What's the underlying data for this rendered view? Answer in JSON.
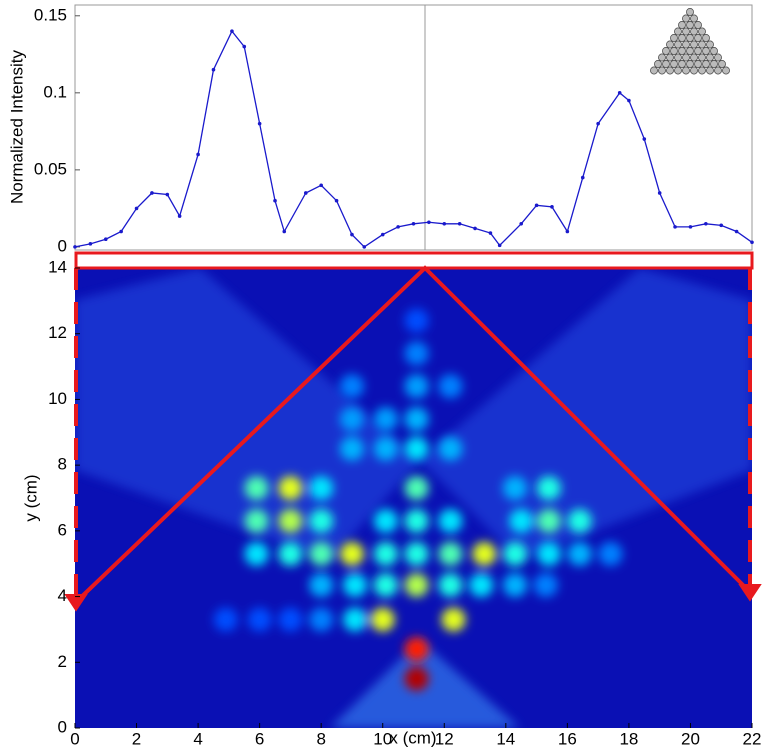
{
  "chart_data": [
    {
      "type": "line",
      "ylabel": "Normalized Intensity",
      "x": [
        0,
        0.5,
        1,
        1.5,
        2,
        2.5,
        3,
        3.4,
        4,
        4.5,
        5.1,
        5.5,
        6,
        6.5,
        6.8,
        7.5,
        8,
        8.5,
        9,
        9.4,
        10,
        10.5,
        11,
        11.5,
        12,
        12.5,
        13,
        13.5,
        13.8,
        14.5,
        15,
        15.5,
        16,
        16.5,
        17,
        17.7,
        18,
        18.5,
        19,
        19.5,
        20,
        20.5,
        21,
        21.5,
        22
      ],
      "series": [
        {
          "color": "#1a1acc",
          "values": [
            0,
            0.002,
            0.005,
            0.01,
            0.025,
            0.035,
            0.034,
            0.02,
            0.06,
            0.115,
            0.14,
            0.13,
            0.08,
            0.03,
            0.01,
            0.035,
            0.04,
            0.03,
            0.008,
            0,
            0.008,
            0.013,
            0.015,
            0.016,
            0.015,
            0.015,
            0.012,
            0.009,
            0.001,
            0.015,
            0.027,
            0.026,
            0.01,
            0.045,
            0.08,
            0.1,
            0.095,
            0.07,
            0.035,
            0.013,
            0.013,
            0.015,
            0.014,
            0.01,
            0.003
          ]
        }
      ],
      "xlim": [
        0,
        22
      ],
      "ylim": [
        -0.002,
        0.157
      ],
      "yticks": [
        0,
        0.05,
        0.1,
        0.15
      ]
    },
    {
      "type": "heatmap",
      "xlabel": "x (cm)",
      "ylabel": "y (cm)",
      "xlim": [
        0,
        22
      ],
      "ylim": [
        0,
        14
      ],
      "xticks": [
        0,
        2,
        4,
        6,
        8,
        10,
        12,
        14,
        16,
        18,
        20,
        22
      ],
      "yticks": [
        0,
        2,
        4,
        6,
        8,
        10,
        12,
        14
      ],
      "spots": [
        {
          "x": 11.1,
          "y": 1.5,
          "v": 0.95
        },
        {
          "x": 11.1,
          "y": 2.4,
          "v": 0.85
        },
        {
          "x": 10,
          "y": 3.3,
          "v": 0.6
        },
        {
          "x": 12.3,
          "y": 3.3,
          "v": 0.6
        },
        {
          "x": 9.1,
          "y": 3.3,
          "v": 0.35
        },
        {
          "x": 8,
          "y": 3.3,
          "v": 0.25
        },
        {
          "x": 7,
          "y": 3.3,
          "v": 0.2
        },
        {
          "x": 6,
          "y": 3.3,
          "v": 0.2
        },
        {
          "x": 4.9,
          "y": 3.3,
          "v": 0.2
        },
        {
          "x": 8,
          "y": 4.35,
          "v": 0.3
        },
        {
          "x": 9.1,
          "y": 4.35,
          "v": 0.35
        },
        {
          "x": 10.1,
          "y": 4.35,
          "v": 0.4
        },
        {
          "x": 11.1,
          "y": 4.35,
          "v": 0.55
        },
        {
          "x": 12.2,
          "y": 4.35,
          "v": 0.4
        },
        {
          "x": 13.2,
          "y": 4.35,
          "v": 0.35
        },
        {
          "x": 14.3,
          "y": 4.35,
          "v": 0.3
        },
        {
          "x": 15.3,
          "y": 4.35,
          "v": 0.25
        },
        {
          "x": 5.9,
          "y": 5.3,
          "v": 0.35
        },
        {
          "x": 7,
          "y": 5.3,
          "v": 0.4
        },
        {
          "x": 8,
          "y": 5.3,
          "v": 0.45
        },
        {
          "x": 9,
          "y": 5.3,
          "v": 0.6
        },
        {
          "x": 10.1,
          "y": 5.3,
          "v": 0.4
        },
        {
          "x": 11.1,
          "y": 5.3,
          "v": 0.4
        },
        {
          "x": 12.2,
          "y": 5.3,
          "v": 0.45
        },
        {
          "x": 13.3,
          "y": 5.3,
          "v": 0.6
        },
        {
          "x": 14.3,
          "y": 5.3,
          "v": 0.4
        },
        {
          "x": 15.4,
          "y": 5.3,
          "v": 0.35
        },
        {
          "x": 16.4,
          "y": 5.3,
          "v": 0.3
        },
        {
          "x": 17.4,
          "y": 5.3,
          "v": 0.25
        },
        {
          "x": 5.9,
          "y": 6.3,
          "v": 0.45
        },
        {
          "x": 7,
          "y": 6.3,
          "v": 0.55
        },
        {
          "x": 8,
          "y": 6.3,
          "v": 0.4
        },
        {
          "x": 10.1,
          "y": 6.3,
          "v": 0.35
        },
        {
          "x": 11.1,
          "y": 6.3,
          "v": 0.4
        },
        {
          "x": 12.2,
          "y": 6.3,
          "v": 0.35
        },
        {
          "x": 14.5,
          "y": 6.3,
          "v": 0.35
        },
        {
          "x": 15.4,
          "y": 6.3,
          "v": 0.45
        },
        {
          "x": 16.4,
          "y": 6.3,
          "v": 0.4
        },
        {
          "x": 5.9,
          "y": 7.3,
          "v": 0.45
        },
        {
          "x": 7,
          "y": 7.3,
          "v": 0.6
        },
        {
          "x": 8,
          "y": 7.3,
          "v": 0.35
        },
        {
          "x": 11.1,
          "y": 7.3,
          "v": 0.45
        },
        {
          "x": 14.3,
          "y": 7.3,
          "v": 0.3
        },
        {
          "x": 15.4,
          "y": 7.3,
          "v": 0.4
        },
        {
          "x": 9,
          "y": 8.5,
          "v": 0.3
        },
        {
          "x": 10.1,
          "y": 8.5,
          "v": 0.3
        },
        {
          "x": 11.1,
          "y": 8.5,
          "v": 0.35
        },
        {
          "x": 12.2,
          "y": 8.5,
          "v": 0.3
        },
        {
          "x": 9,
          "y": 9.4,
          "v": 0.28
        },
        {
          "x": 10.1,
          "y": 9.4,
          "v": 0.28
        },
        {
          "x": 11.1,
          "y": 9.4,
          "v": 0.3
        },
        {
          "x": 9,
          "y": 10.4,
          "v": 0.25
        },
        {
          "x": 11.1,
          "y": 10.4,
          "v": 0.28
        },
        {
          "x": 12.2,
          "y": 10.4,
          "v": 0.25
        },
        {
          "x": 11.1,
          "y": 11.4,
          "v": 0.25
        },
        {
          "x": 11.1,
          "y": 12.4,
          "v": 0.2
        }
      ]
    }
  ]
}
